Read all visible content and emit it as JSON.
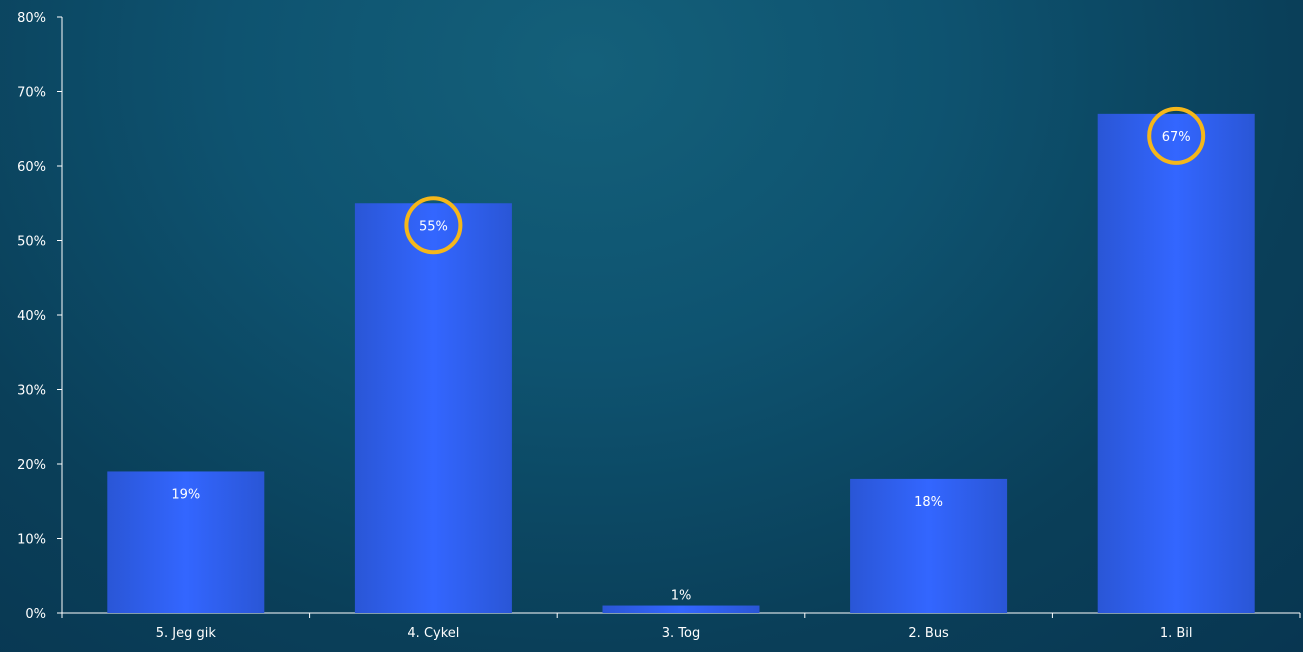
{
  "chart_data": {
    "type": "bar",
    "categories": [
      "5. Jeg gik",
      "4. Cykel",
      "3. Tog",
      "2. Bus",
      "1. Bil"
    ],
    "values": [
      19,
      55,
      1,
      18,
      67
    ],
    "data_labels": [
      "19%",
      "55%",
      "1%",
      "18%",
      "67%"
    ],
    "highlighted": [
      "4. Cykel",
      "1. Bil"
    ],
    "ylim": [
      0,
      80
    ],
    "yticks": [
      "0%",
      "10%",
      "20%",
      "30%",
      "40%",
      "50%",
      "60%",
      "70%",
      "80%"
    ],
    "grid": false,
    "legend": "none",
    "colors": {
      "bar_edge": "#2a56d6",
      "bar_center": "#3366ff",
      "highlight_ring": "#f5b71a",
      "axis": "#ffffff",
      "background": "#0b4560"
    }
  }
}
